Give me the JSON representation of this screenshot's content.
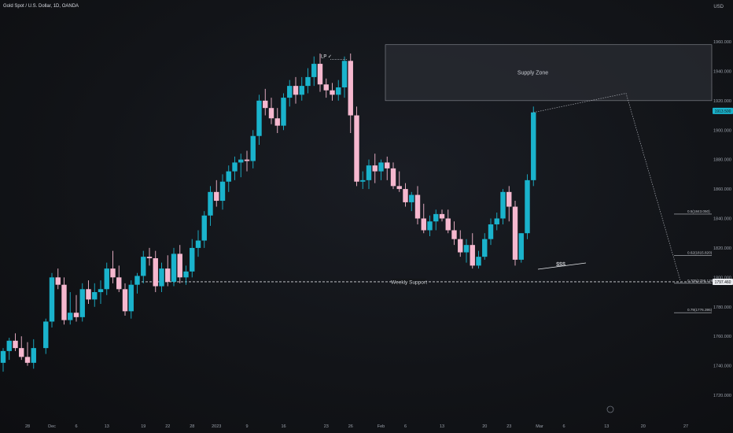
{
  "header": {
    "symbol_title": "Gold Spot / U.S. Dollar, 1D, OANDA",
    "currency": "USD"
  },
  "chart_data": {
    "type": "candlestick",
    "title": "Gold Spot / U.S. Dollar, 1D, OANDA",
    "ylim": [
      1710,
      1965
    ],
    "y_ticks": [
      "1960.000",
      "1940.000",
      "1920.000",
      "1900.000",
      "1880.000",
      "1860.000",
      "1840.000",
      "1820.000",
      "1800.000",
      "1780.000",
      "1760.000",
      "1740.000",
      "1720.000"
    ],
    "x_ticks": [
      {
        "label": "28",
        "i": 4
      },
      {
        "label": "Dec",
        "i": 8
      },
      {
        "label": "6",
        "i": 12
      },
      {
        "label": "13",
        "i": 17
      },
      {
        "label": "19",
        "i": 23
      },
      {
        "label": "22",
        "i": 27
      },
      {
        "label": "28",
        "i": 31
      },
      {
        "label": "2023",
        "i": 35
      },
      {
        "label": "9",
        "i": 40
      },
      {
        "label": "16",
        "i": 46
      },
      {
        "label": "23",
        "i": 53
      },
      {
        "label": "26",
        "i": 57
      },
      {
        "label": "Feb",
        "i": 62
      },
      {
        "label": "6",
        "i": 66
      },
      {
        "label": "13",
        "i": 72
      },
      {
        "label": "20",
        "i": 79
      },
      {
        "label": "23",
        "i": 83
      },
      {
        "label": "Mar",
        "i": 88
      },
      {
        "label": "6",
        "i": 92
      },
      {
        "label": "13",
        "i": 99
      },
      {
        "label": "20",
        "i": 105
      },
      {
        "label": "27",
        "i": 112
      }
    ],
    "colors": {
      "up": "#1ab3cc",
      "down": "#f6b8cf",
      "supply": "#2a2c33",
      "support": "#d6d8dd"
    },
    "candles": [
      [
        1742,
        1752,
        1736,
        1750
      ],
      [
        1750,
        1759,
        1744,
        1757
      ],
      [
        1757,
        1762,
        1750,
        1752
      ],
      [
        1752,
        1760,
        1744,
        1746
      ],
      [
        1746,
        1756,
        1740,
        1742
      ],
      [
        1742,
        1758,
        1738,
        1752
      ],
      [
        1752,
        1772,
        1748,
        1770
      ],
      [
        1770,
        1803,
        1766,
        1800
      ],
      [
        1800,
        1806,
        1792,
        1795
      ],
      [
        1795,
        1800,
        1768,
        1771
      ],
      [
        1771,
        1790,
        1768,
        1776
      ],
      [
        1776,
        1788,
        1770,
        1773
      ],
      [
        1773,
        1796,
        1770,
        1792
      ],
      [
        1792,
        1798,
        1782,
        1785
      ],
      [
        1785,
        1796,
        1780,
        1790
      ],
      [
        1790,
        1798,
        1782,
        1792
      ],
      [
        1792,
        1810,
        1788,
        1806
      ],
      [
        1806,
        1818,
        1796,
        1800
      ],
      [
        1800,
        1808,
        1790,
        1792
      ],
      [
        1792,
        1796,
        1774,
        1777
      ],
      [
        1777,
        1798,
        1772,
        1795
      ],
      [
        1795,
        1803,
        1789,
        1801
      ],
      [
        1801,
        1818,
        1796,
        1814
      ],
      [
        1814,
        1820,
        1808,
        1813
      ],
      [
        1813,
        1818,
        1790,
        1794
      ],
      [
        1794,
        1810,
        1790,
        1806
      ],
      [
        1806,
        1815,
        1794,
        1797
      ],
      [
        1797,
        1820,
        1794,
        1816
      ],
      [
        1816,
        1822,
        1796,
        1800
      ],
      [
        1800,
        1808,
        1795,
        1804
      ],
      [
        1804,
        1826,
        1800,
        1820
      ],
      [
        1820,
        1832,
        1814,
        1825
      ],
      [
        1825,
        1845,
        1820,
        1842
      ],
      [
        1842,
        1862,
        1835,
        1858
      ],
      [
        1858,
        1866,
        1848,
        1852
      ],
      [
        1852,
        1870,
        1846,
        1865
      ],
      [
        1865,
        1876,
        1858,
        1872
      ],
      [
        1872,
        1882,
        1866,
        1878
      ],
      [
        1878,
        1884,
        1868,
        1880
      ],
      [
        1880,
        1886,
        1872,
        1879
      ],
      [
        1879,
        1900,
        1874,
        1896
      ],
      [
        1896,
        1924,
        1890,
        1920
      ],
      [
        1920,
        1928,
        1910,
        1915
      ],
      [
        1915,
        1922,
        1904,
        1908
      ],
      [
        1908,
        1915,
        1898,
        1903
      ],
      [
        1903,
        1925,
        1900,
        1922
      ],
      [
        1922,
        1934,
        1916,
        1930
      ],
      [
        1930,
        1936,
        1918,
        1924
      ],
      [
        1924,
        1936,
        1920,
        1930
      ],
      [
        1930,
        1942,
        1925,
        1936
      ],
      [
        1936,
        1950,
        1930,
        1945
      ],
      [
        1945,
        1952,
        1926,
        1931
      ],
      [
        1931,
        1935,
        1922,
        1927
      ],
      [
        1927,
        1932,
        1920,
        1924
      ],
      [
        1924,
        1934,
        1920,
        1929
      ],
      [
        1929,
        1950,
        1922,
        1947
      ],
      [
        1947,
        1952,
        1898,
        1910
      ],
      [
        1910,
        1916,
        1862,
        1865
      ],
      [
        1865,
        1872,
        1860,
        1866
      ],
      [
        1866,
        1880,
        1860,
        1876
      ],
      [
        1876,
        1884,
        1864,
        1872
      ],
      [
        1872,
        1880,
        1866,
        1878
      ],
      [
        1878,
        1882,
        1866,
        1874
      ],
      [
        1874,
        1878,
        1860,
        1862
      ],
      [
        1862,
        1872,
        1858,
        1860
      ],
      [
        1860,
        1864,
        1848,
        1851
      ],
      [
        1851,
        1858,
        1845,
        1856
      ],
      [
        1856,
        1862,
        1836,
        1840
      ],
      [
        1840,
        1850,
        1830,
        1832
      ],
      [
        1832,
        1842,
        1828,
        1838
      ],
      [
        1838,
        1846,
        1832,
        1843
      ],
      [
        1843,
        1846,
        1838,
        1840
      ],
      [
        1840,
        1846,
        1830,
        1832
      ],
      [
        1832,
        1838,
        1822,
        1826
      ],
      [
        1826,
        1832,
        1814,
        1817
      ],
      [
        1817,
        1826,
        1810,
        1822
      ],
      [
        1822,
        1830,
        1806,
        1808
      ],
      [
        1808,
        1818,
        1806,
        1814
      ],
      [
        1814,
        1830,
        1812,
        1826
      ],
      [
        1826,
        1840,
        1822,
        1836
      ],
      [
        1836,
        1844,
        1832,
        1840
      ],
      [
        1840,
        1860,
        1836,
        1858
      ],
      [
        1858,
        1862,
        1838,
        1848
      ],
      [
        1848,
        1852,
        1808,
        1812
      ],
      [
        1812,
        1830,
        1810,
        1830
      ],
      [
        1830,
        1870,
        1826,
        1866
      ],
      [
        1866,
        1916,
        1862,
        1912
      ]
    ],
    "xmap": [
      0,
      1,
      2,
      3,
      4,
      5,
      7,
      8,
      9,
      10,
      11,
      12,
      13,
      14,
      15,
      16,
      17,
      18,
      19,
      20,
      21,
      22,
      23,
      24,
      25,
      26,
      27,
      28,
      29,
      30,
      31,
      32,
      33,
      34,
      35,
      36,
      37,
      38,
      39,
      40,
      41,
      42,
      43,
      44,
      45,
      46,
      47,
      48,
      49,
      50,
      51,
      52,
      53,
      54,
      55,
      56,
      57,
      58,
      59,
      60,
      61,
      62,
      63,
      64,
      65,
      66,
      67,
      68,
      69,
      70,
      71,
      72,
      73,
      74,
      75,
      76,
      77,
      78,
      79,
      80,
      81,
      82,
      83,
      84,
      85,
      86,
      87,
      88
    ],
    "supply_zone": {
      "label": "Supply Zone",
      "top": 1958,
      "bottom": 1920
    },
    "weekly_support": {
      "label": "Weekly Support",
      "price": 1797
    },
    "fib_levels": [
      {
        "label": "0.5(1843.050)",
        "price": 1843
      },
      {
        "label": "0.62(1815.820)",
        "price": 1815
      },
      {
        "label": "0.705(1796.128)",
        "price": 1796
      },
      {
        "label": "0.79(1776.395)",
        "price": 1776
      }
    ],
    "price_labels": [
      {
        "text": "1913.500",
        "price": 1913,
        "color": "#1ab3cc"
      },
      {
        "text": "1797.460",
        "price": 1797,
        "color": "#e9ebef"
      }
    ],
    "annotations": {
      "lp": "LP ✓",
      "sss": "$$$"
    }
  }
}
